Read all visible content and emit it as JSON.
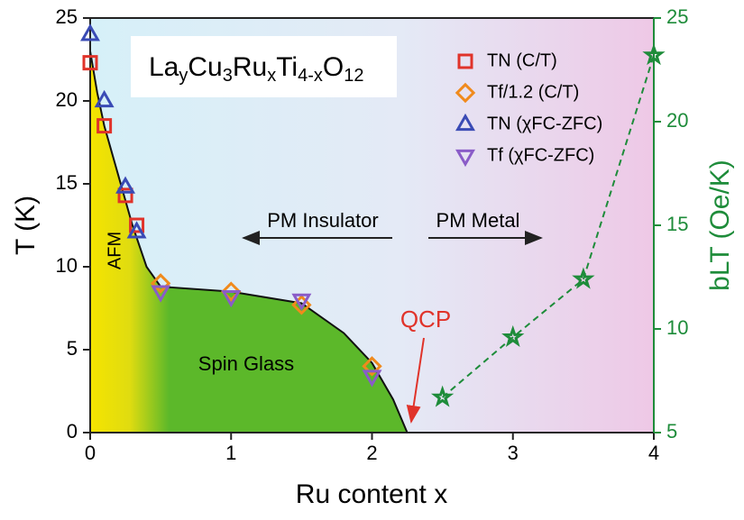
{
  "chart_data": {
    "type": "scatter",
    "formula": [
      "La",
      "y",
      "Cu",
      "3",
      "Ru",
      "x",
      "Ti",
      "4-x",
      "O",
      "12"
    ],
    "x_label": "Ru content x",
    "y_label": "T (K)",
    "y2_label": "bLT (Oe/K)",
    "xlim": [
      0,
      4
    ],
    "xticks": [
      0,
      1,
      2,
      3,
      4
    ],
    "ylim": [
      0,
      25
    ],
    "yticks": [
      0,
      5,
      10,
      15,
      20,
      25
    ],
    "y2lim": [
      5,
      25
    ],
    "y2ticks": [
      5,
      10,
      15,
      20,
      25
    ],
    "series": [
      {
        "name": "TN (C/T)",
        "color": "#e0332a",
        "marker": "square",
        "x": [
          0,
          0.1,
          0.25,
          0.33
        ],
        "values": [
          22.3,
          18.5,
          14.3,
          12.5
        ]
      },
      {
        "name": "Tf/1.2 (C/T)",
        "color": "#f08a1c",
        "marker": "diamond",
        "x": [
          0.5,
          1.0,
          1.5,
          2.0
        ],
        "values": [
          9.0,
          8.5,
          7.7,
          4.0
        ]
      },
      {
        "name": "TN (χFC-ZFC)",
        "color": "#3a4bb5",
        "marker": "triangle-up",
        "x": [
          0,
          0.1,
          0.25,
          0.33
        ],
        "values": [
          24.0,
          20.0,
          14.8,
          12.1
        ]
      },
      {
        "name": "Tf (χFC-ZFC)",
        "color": "#8a5cc8",
        "marker": "triangle-down",
        "x": [
          0.5,
          1.0,
          1.5,
          2.0
        ],
        "values": [
          8.5,
          8.2,
          8.0,
          3.4
        ]
      }
    ],
    "b_series": {
      "color": "#1e8c3a",
      "marker": "star",
      "axis": "y2",
      "x": [
        2.5,
        3.0,
        3.5,
        4.0
      ],
      "values": [
        6.7,
        9.6,
        12.4,
        23.2
      ]
    },
    "phase_boundary": {
      "x": [
        0,
        0.05,
        0.1,
        0.2,
        0.3,
        0.4,
        0.5,
        1.0,
        1.5,
        1.8,
        2.0,
        2.15,
        2.25
      ],
      "values": [
        23,
        20.5,
        18.5,
        15.5,
        12.5,
        10,
        8.8,
        8.5,
        7.8,
        6,
        4.2,
        2,
        0
      ]
    },
    "annotations": {
      "afm": "AFM",
      "spin_glass": "Spin Glass",
      "pm_insulator": "PM Insulator",
      "pm_metal": "PM Metal",
      "qcp": "QCP"
    }
  }
}
